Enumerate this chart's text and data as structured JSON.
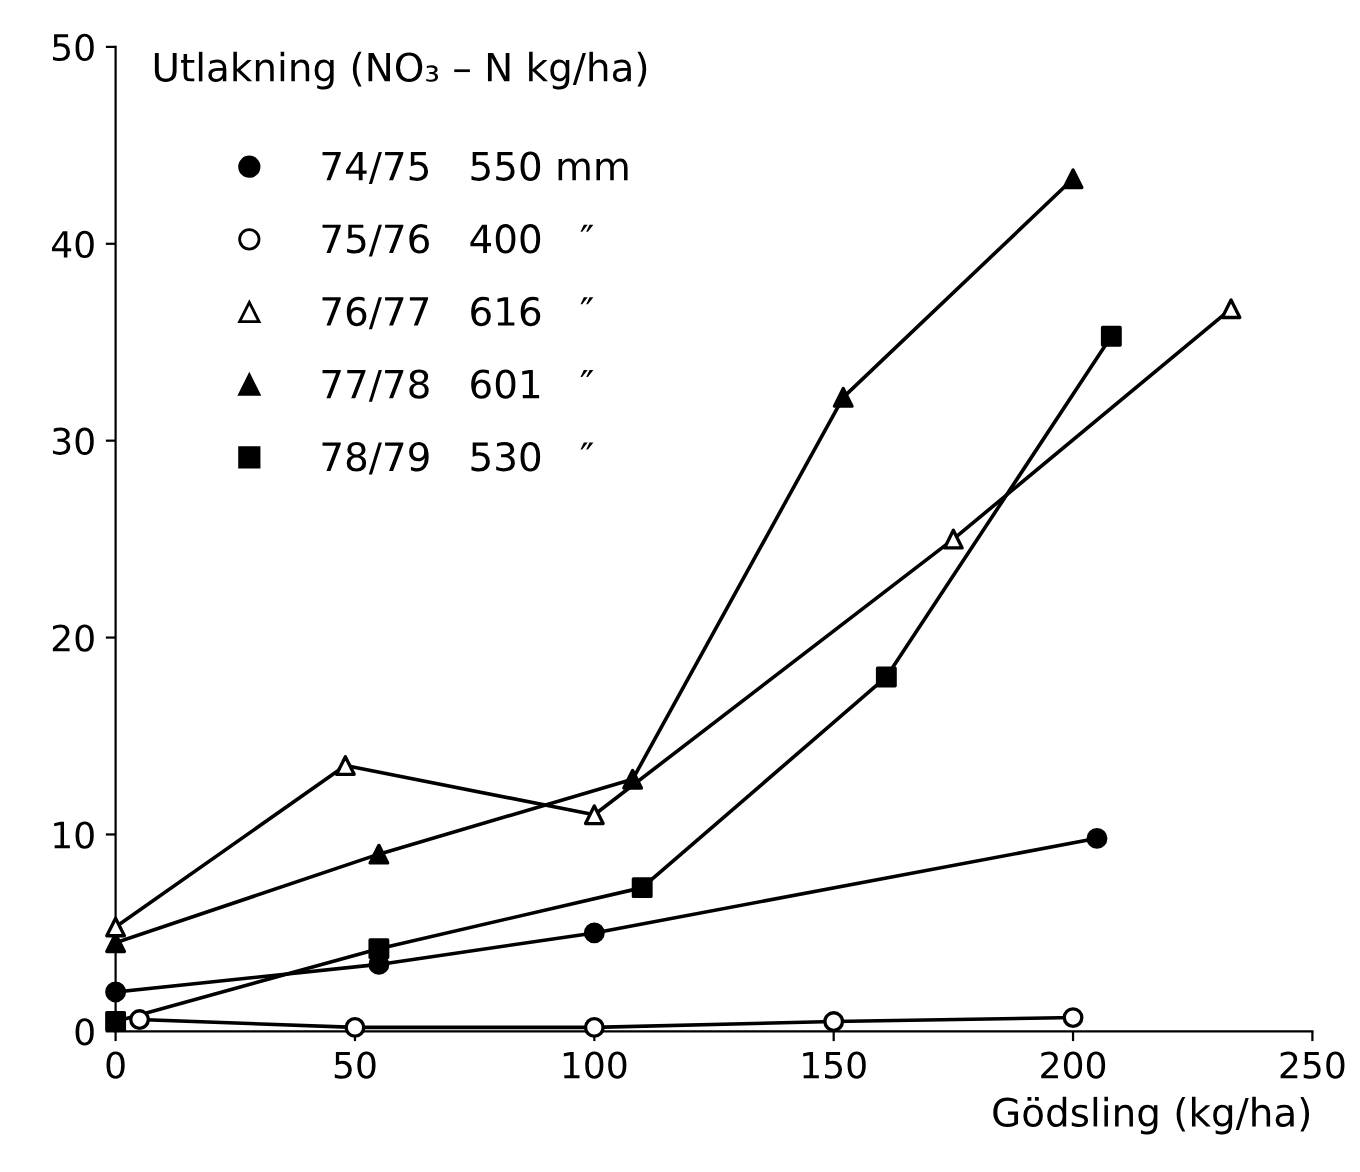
{
  "chart_data": {
    "type": "line",
    "ylabel": "Utlakning (NO₃ – N kg/ha)",
    "xlabel": "Gödsling (kg/ha)",
    "xlim": [
      0,
      250
    ],
    "xticks": [
      0,
      50,
      100,
      150,
      200,
      250
    ],
    "ylim": [
      0,
      50
    ],
    "yticks": [
      0,
      10,
      20,
      30,
      40,
      50
    ],
    "grid": false,
    "legend": "top left",
    "line_style": "solid",
    "series": [
      {
        "name": "74/75   550 mm",
        "color": "#000000",
        "marker": "circle",
        "colors": [
          "#000000",
          "#000000",
          "#000000",
          "#000000"
        ],
        "x": [
          0,
          55,
          100,
          205
        ],
        "values": [
          2.0,
          3.4,
          5.0,
          9.8
        ]
      },
      {
        "name": "75/76   400   ″",
        "color": "#000000",
        "marker": "circle",
        "colors": [
          "#ffffff",
          "#ffffff",
          "#ffffff",
          "#ffffff",
          "#ffffff"
        ],
        "x": [
          5,
          50,
          100,
          150,
          200
        ],
        "values": [
          0.6,
          0.2,
          0.2,
          0.5,
          0.7
        ]
      },
      {
        "name": "76/77   616   ″",
        "color": "#000000",
        "marker": "triangle",
        "colors": [
          "#ffffff",
          "#ffffff",
          "#ffffff",
          "#ffffff",
          "#ffffff"
        ],
        "x": [
          0,
          48,
          100,
          175,
          233
        ],
        "values": [
          5.3,
          13.5,
          11.0,
          25.0,
          36.7
        ]
      },
      {
        "name": "77/78   601   ″",
        "color": "#000000",
        "marker": "triangle",
        "colors": [
          "#000000",
          "#000000",
          "#000000",
          "#000000",
          "#000000"
        ],
        "x": [
          0,
          55,
          108,
          152,
          200
        ],
        "values": [
          4.5,
          9.0,
          12.8,
          32.2,
          43.3
        ]
      },
      {
        "name": "78/79   530   ″",
        "color": "#000000",
        "marker": "square",
        "colors": [
          "#000000",
          "#000000",
          "#000000",
          "#000000",
          "#000000"
        ],
        "x": [
          0,
          55,
          110,
          161,
          208
        ],
        "values": [
          0.5,
          4.2,
          7.3,
          18.0,
          35.3
        ]
      }
    ]
  }
}
